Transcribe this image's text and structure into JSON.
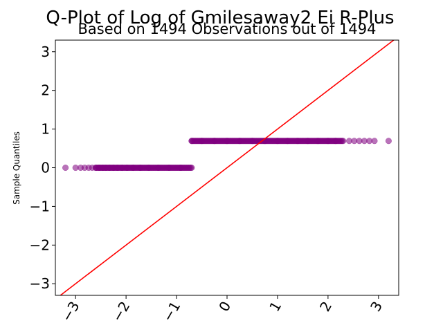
{
  "chart_data": {
    "type": "scatter",
    "title": "Q-Plot of Log of Gmilesaway2 Ei R-Plus",
    "subtitle": "Based on 1494 Observations out of 1494",
    "xlabel": "",
    "ylabel": "Sample Quantiles",
    "xlim": [
      -3.4,
      3.4
    ],
    "ylim": [
      -3.3,
      3.3
    ],
    "x_ticks": [
      "−3",
      "−2",
      "−1",
      "0",
      "1",
      "2",
      "3"
    ],
    "x_tick_values": [
      -3,
      -2,
      -1,
      0,
      1,
      2,
      3
    ],
    "y_ticks": [
      "−3",
      "−2",
      "−1",
      "0",
      "1",
      "2",
      "3"
    ],
    "y_tick_values": [
      -3,
      -2,
      -1,
      0,
      1,
      2,
      3
    ],
    "grid": false,
    "point_color": "#800080",
    "line_color": "#ff0000",
    "reference_line": {
      "slope": 1,
      "intercept": 0
    },
    "series": [
      {
        "values_y": 0.0,
        "x_range": [
          -0.7,
          -3.2
        ],
        "x_samples": [
          -3.2,
          -3.0,
          -2.9,
          -2.82,
          -2.74,
          -2.67,
          -2.6,
          -2.53,
          -2.46,
          -2.4,
          -2.33,
          -2.25,
          -2.17,
          -2.08,
          -1.98,
          -1.86,
          -1.72,
          -1.55,
          -1.36,
          -1.15,
          -0.92,
          -0.7
        ]
      },
      {
        "values_y": 0.693,
        "x_range": [
          -0.7,
          3.2
        ],
        "x_samples": [
          -0.7,
          -0.5,
          -0.25,
          0.0,
          0.25,
          0.5,
          0.75,
          1.0,
          1.2,
          1.4,
          1.6,
          1.8,
          2.0,
          2.15,
          2.3,
          2.42,
          2.52,
          2.62,
          2.72,
          2.82,
          2.92,
          3.2
        ]
      }
    ]
  }
}
